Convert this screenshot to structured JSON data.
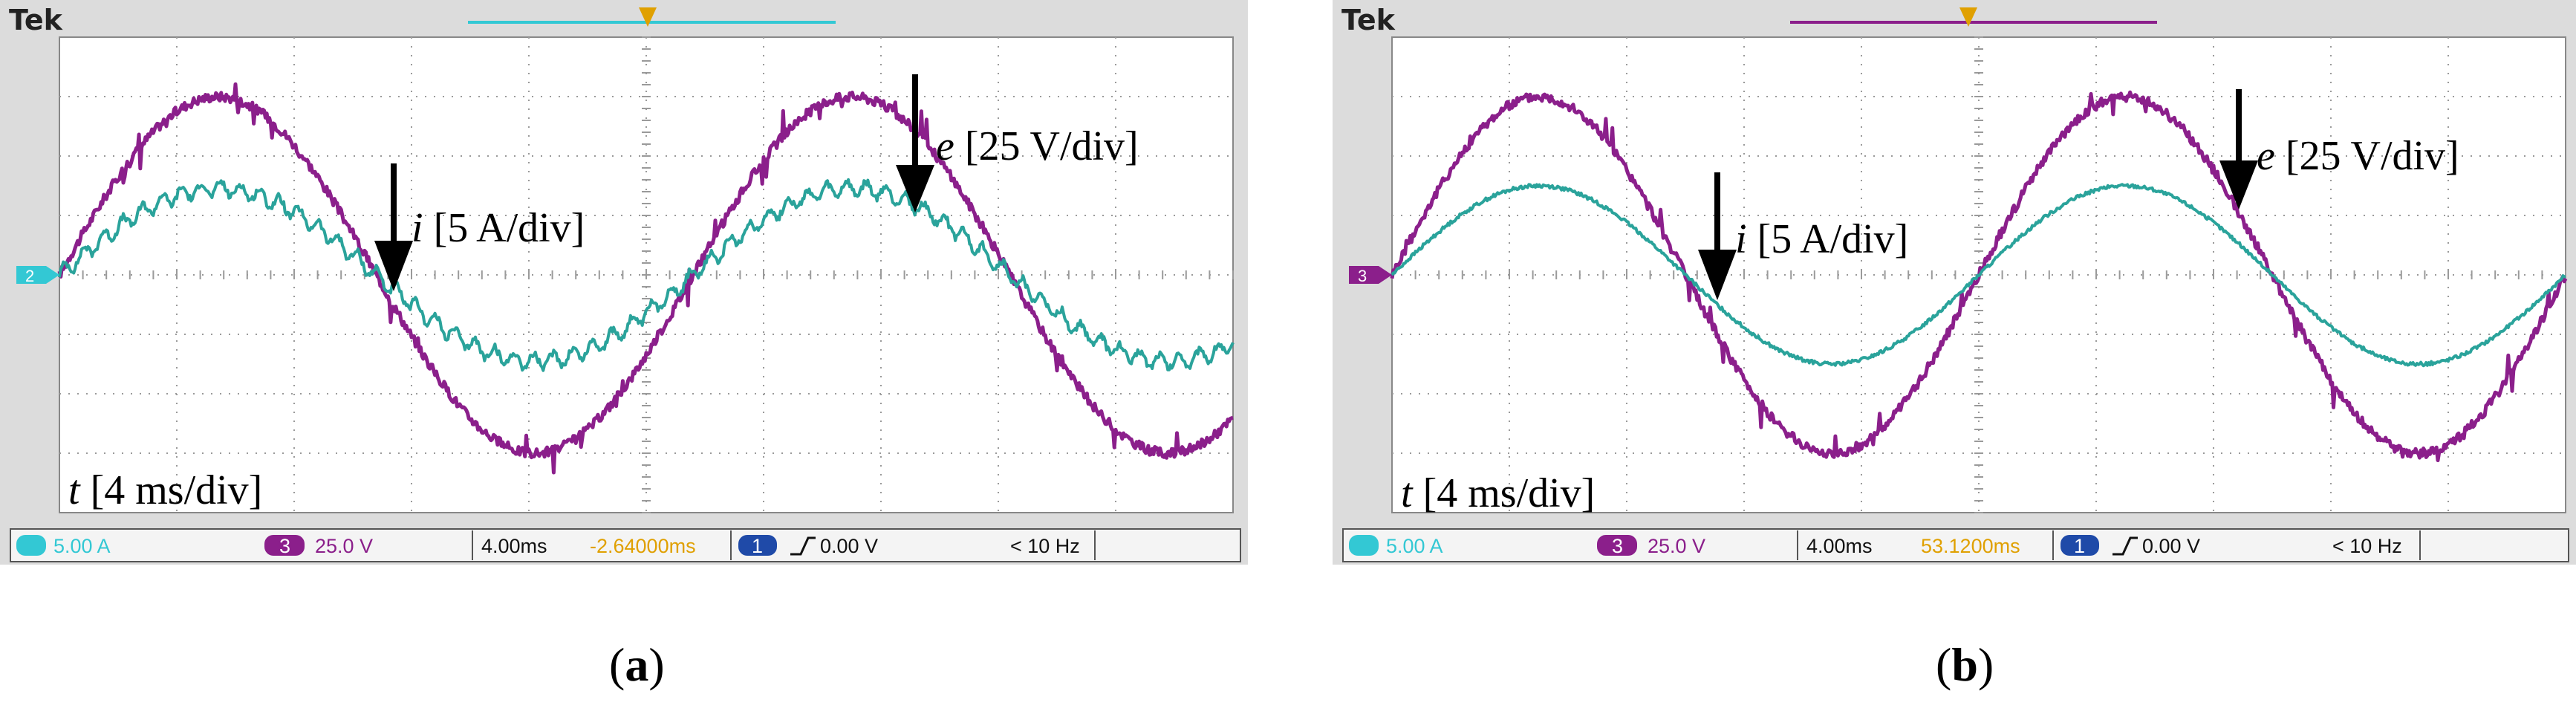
{
  "panels": [
    {
      "id": "a",
      "brand": "Tek",
      "caption_letter": "a",
      "channel_marker": "2",
      "status": {
        "ch2_scale": "5.00 A",
        "ch3_id": "3",
        "ch3_scale": "25.0 V",
        "timebase": "4.00ms",
        "position": "-2.64000ms",
        "trig_ch": "1",
        "trig_level": "0.00 V",
        "freq": "< 10 Hz"
      },
      "labels": {
        "t_var": "t",
        "t_unit": "[4 ms/div]",
        "i_var": "i",
        "i_unit": "[5 A/div]",
        "e_var": "e",
        "e_unit": "[25 V/div]"
      },
      "colors": {
        "current": "#2aa39b",
        "voltage": "#8b1f8b",
        "marker": "#33c8d4",
        "position": "#e0a000"
      },
      "chart_data": {
        "type": "line",
        "x_unit": "div",
        "xlim": [
          0,
          10
        ],
        "ylim": [
          -4,
          4
        ],
        "grid": true,
        "series": [
          {
            "name": "e",
            "amplitude_div": 3.0,
            "period_div": 5.4,
            "peak_div": 1.35,
            "noise": 0.08
          },
          {
            "name": "i",
            "amplitude_div": 1.45,
            "period_div": 5.4,
            "peak_div": 1.35,
            "noise": 0.06,
            "ripple": 0.12
          }
        ]
      }
    },
    {
      "id": "b",
      "brand": "Tek",
      "caption_letter": "b",
      "channel_marker": "3",
      "status": {
        "ch2_scale": "5.00 A",
        "ch3_id": "3",
        "ch3_scale": "25.0 V",
        "timebase": "4.00ms",
        "position": "53.1200ms",
        "trig_ch": "1",
        "trig_level": "0.00 V",
        "freq": "< 10 Hz"
      },
      "labels": {
        "t_var": "t",
        "t_unit": "[4 ms/div]",
        "i_var": "i",
        "i_unit": "[5 A/div]",
        "e_var": "e",
        "e_unit": "[25 V/div]"
      },
      "colors": {
        "current": "#2aa39b",
        "voltage": "#8b1f8b",
        "marker": "#8b1f8b",
        "position": "#e0a000"
      },
      "chart_data": {
        "type": "line",
        "x_unit": "div",
        "xlim": [
          0,
          10
        ],
        "ylim": [
          -4,
          4
        ],
        "grid": true,
        "series": [
          {
            "name": "e",
            "amplitude_div": 3.0,
            "period_div": 5.0,
            "peak_div": 1.25,
            "noise": 0.08
          },
          {
            "name": "i",
            "amplitude_div": 1.5,
            "period_div": 5.0,
            "peak_div": 1.25,
            "noise": 0.03,
            "ripple": 0.0
          }
        ]
      }
    }
  ]
}
